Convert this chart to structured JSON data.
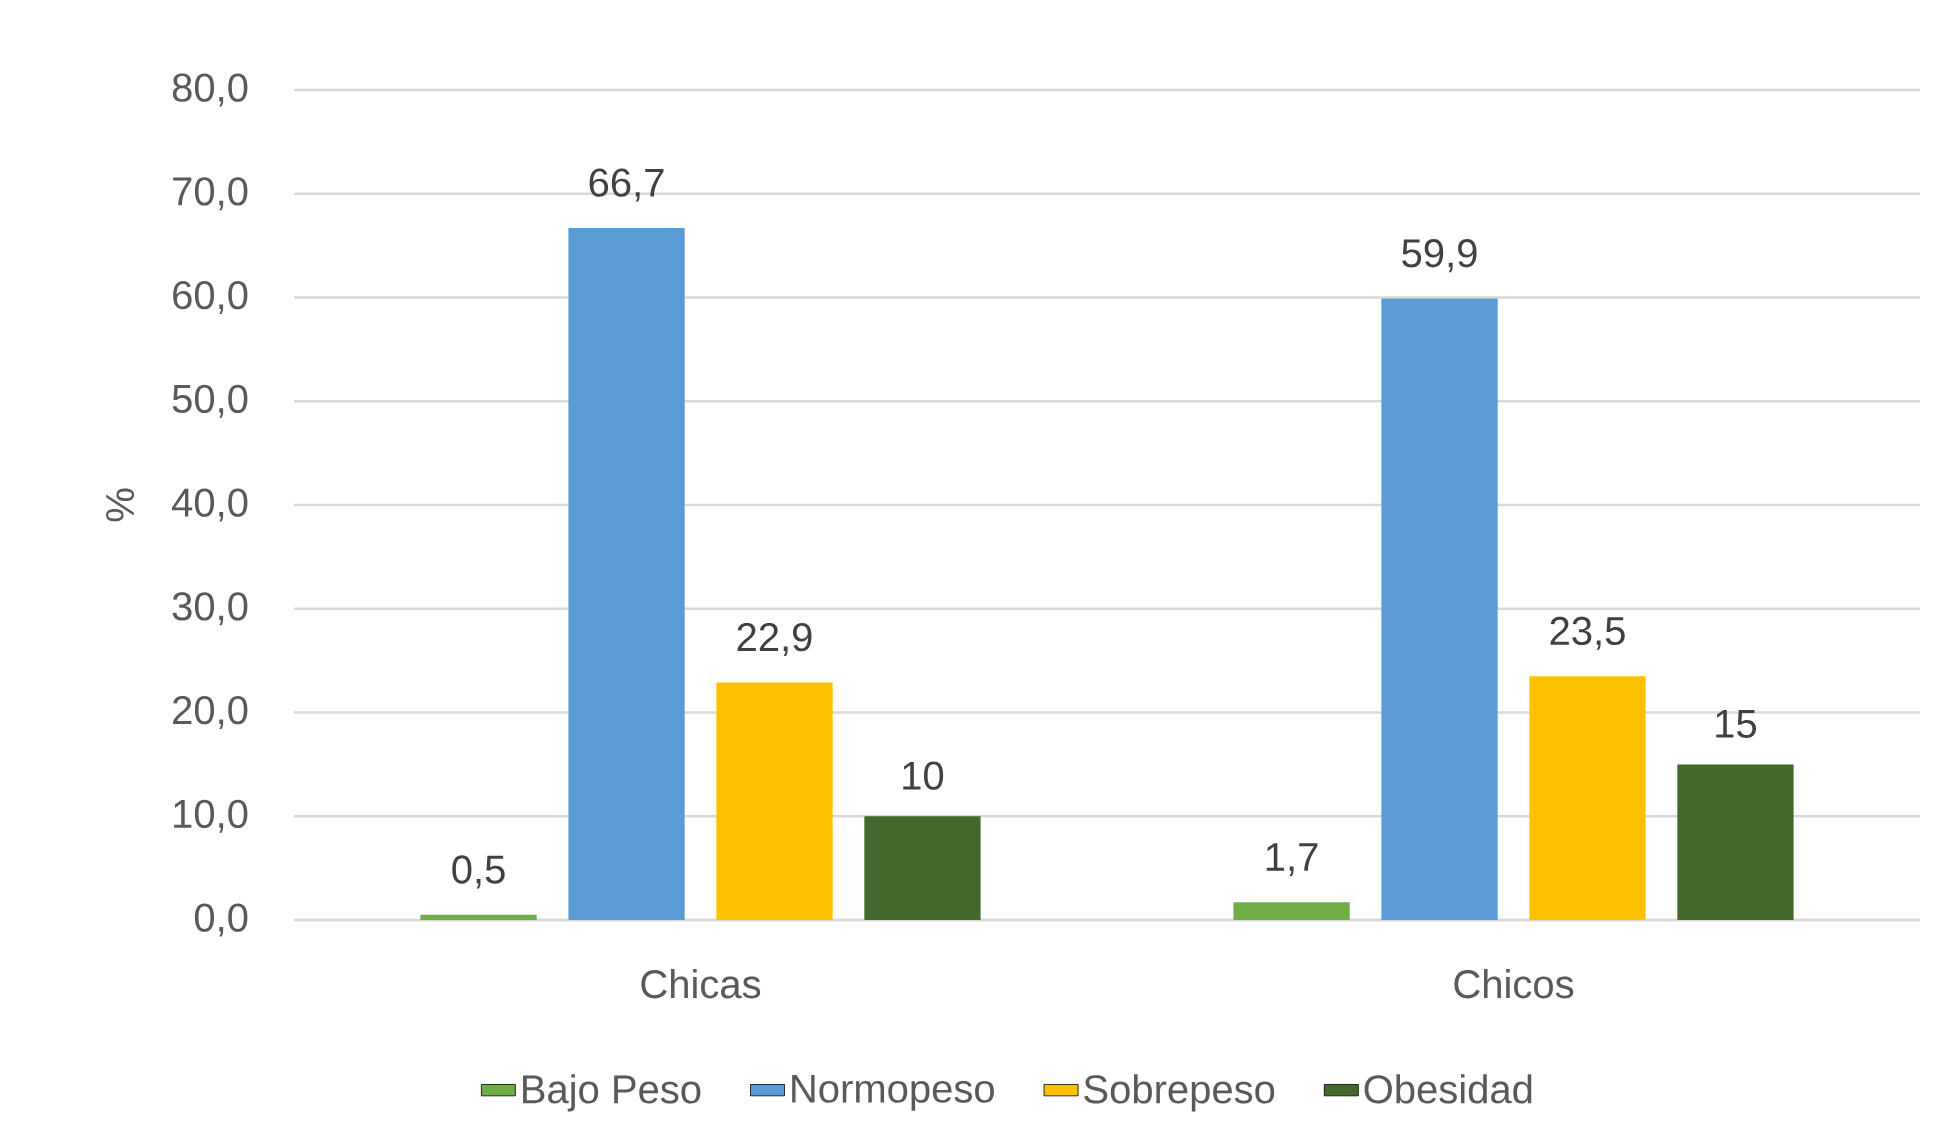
{
  "chart_data": {
    "type": "bar",
    "ylabel": "%",
    "categories": [
      "Chicas",
      "Chicos"
    ],
    "series": [
      {
        "name": "Bajo Peso",
        "color": "#70ad47",
        "values": [
          0.5,
          1.7
        ],
        "value_labels": [
          "0,5",
          "1,7"
        ]
      },
      {
        "name": "Normopeso",
        "color": "#5b9bd5",
        "values": [
          66.7,
          59.9
        ],
        "value_labels": [
          "66,7",
          "59,9"
        ]
      },
      {
        "name": "Sobrepeso",
        "color": "#ffc000",
        "values": [
          22.9,
          23.5
        ],
        "value_labels": [
          "22,9",
          "23,5"
        ]
      },
      {
        "name": "Obesidad",
        "color": "#43682b",
        "values": [
          10,
          15
        ],
        "value_labels": [
          "10",
          "15"
        ]
      }
    ],
    "ylim": [
      0,
      80
    ],
    "yticks": [
      {
        "value": 0,
        "label": "0,0"
      },
      {
        "value": 10,
        "label": "10,0"
      },
      {
        "value": 20,
        "label": "20,0"
      },
      {
        "value": 30,
        "label": "30,0"
      },
      {
        "value": 40,
        "label": "40,0"
      },
      {
        "value": 50,
        "label": "50,0"
      },
      {
        "value": 60,
        "label": "60,0"
      },
      {
        "value": 70,
        "label": "70,0"
      },
      {
        "value": 80,
        "label": "80,0"
      }
    ],
    "grid": "y",
    "legend": "bottom"
  }
}
